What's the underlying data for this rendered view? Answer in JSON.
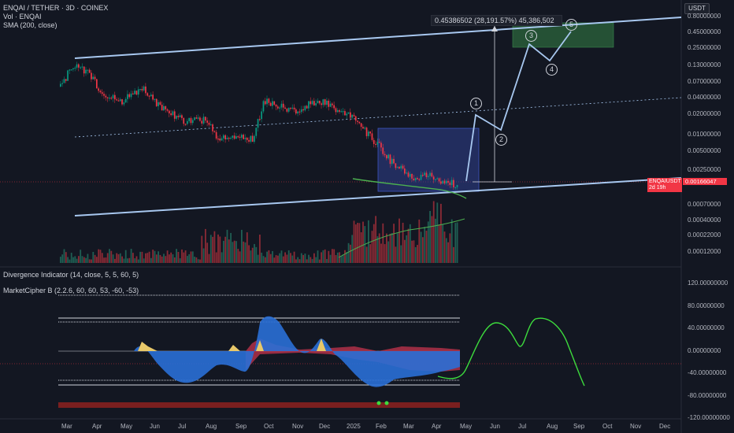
{
  "header": {
    "symbol_line": "ENQAI / TETHER · 3D · COINEX",
    "vol_line": "Vol · ENQAI",
    "sma_line": "SMA (200, close)",
    "currency": "USDT"
  },
  "measurement_label": "0.45386502 (28,191.57%) 45,386,502",
  "price_tag": {
    "symbol": "ENQAIUSDT",
    "countdown": "2d 19h",
    "value": "0.00166047"
  },
  "wave_labels": [
    "1",
    "2",
    "3",
    "4",
    "5"
  ],
  "indicators": {
    "divergence": "Divergence Indicator (14, close, 5, 5, 60, 5)",
    "marketcipher": "MarketCipher B (2.2.6, 60, 60, 53, -60, -53)"
  },
  "colors": {
    "bg": "#131722",
    "up": "#089981",
    "down": "#f23645",
    "channel": "#a8c8f0",
    "sma": "#4caf50",
    "box_blue": "#2f3f8f",
    "box_green": "#2e6b3d"
  },
  "chart_data": [
    {
      "type": "line",
      "name": "price",
      "scale": "log",
      "y_ticks": [
        "0.80000000",
        "0.45000000",
        "0.25000000",
        "0.13000000",
        "0.07000000",
        "0.04000000",
        "0.02000000",
        "0.01000000",
        "0.00500000",
        "0.00250000"
      ],
      "x_ticks": [
        "Mar",
        "Apr",
        "May",
        "Jun",
        "Jul",
        "Aug",
        "Sep",
        "Oct",
        "Nov",
        "Dec",
        "2025",
        "Feb",
        "Mar",
        "Apr",
        "May",
        "Jun",
        "Jul",
        "Aug",
        "Sep",
        "Oct",
        "Nov",
        "Dec"
      ],
      "last_price": 0.00166047,
      "projection": {
        "target": 0.45386502,
        "change_percent": "28,191.57%",
        "ticks": "45,386,502"
      }
    },
    {
      "type": "bar",
      "name": "volume",
      "y_ticks": [
        "0.00070000",
        "0.00040000",
        "0.00022000",
        "0.00012000"
      ]
    },
    {
      "type": "area",
      "name": "MarketCipher B",
      "y_ticks": [
        "120.00000000",
        "80.00000000",
        "40.00000000",
        "0.00000000",
        "-40.00000000",
        "-80.00000000",
        "-120.00000000"
      ],
      "ylim": [
        -120,
        120
      ],
      "levels": [
        60,
        53,
        -53,
        -60
      ]
    }
  ]
}
